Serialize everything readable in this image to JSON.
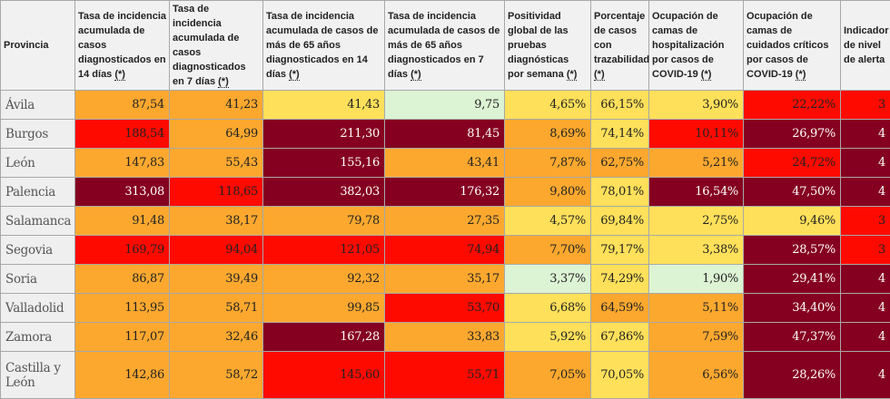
{
  "colors": {
    "o": "#fca82f",
    "y": "#ffe05a",
    "g": "#dcf3d4",
    "r": "#ff0a00",
    "d": "#850020"
  },
  "headers": [
    {
      "text": "Provincia",
      "note": ""
    },
    {
      "text": "Tasa de incidencia acumulada de casos diagnosticados en 14 días ",
      "note": "(*)"
    },
    {
      "text": "Tasa de incidencia acumulada de casos diagnosticados en 7 días ",
      "note": "(*)"
    },
    {
      "text": "Tasa de incidencia acumulada de casos de más de 65 años diagnosticados en 14 días ",
      "note": "(*)"
    },
    {
      "text": "Tasa de incidencia acumulada de casos de más de 65 años diagnosticados en 7 días ",
      "note": "(*)"
    },
    {
      "text": "Positividad global de las pruebas diagnósticas por semana ",
      "note": "(*)"
    },
    {
      "text": "Porcentaje de casos con trazabilidad ",
      "note": "(*)"
    },
    {
      "text": "Ocupación de camas de hospitalización por casos de COVID-19 ",
      "note": "(*)"
    },
    {
      "text": "Ocupación de camas de cuidados críticos por casos de COVID-19 ",
      "note": "(*)"
    },
    {
      "text": "Indicador de nivel de alerta",
      "note": ""
    }
  ],
  "rows": [
    {
      "province": "Ávila",
      "cells": [
        [
          "87,54",
          "o"
        ],
        [
          "41,23",
          "o"
        ],
        [
          "41,43",
          "y"
        ],
        [
          "9,75",
          "g"
        ],
        [
          "4,65%",
          "y"
        ],
        [
          "66,15%",
          "y"
        ],
        [
          "3,90%",
          "y"
        ],
        [
          "22,22%",
          "r"
        ],
        [
          "3",
          "r"
        ]
      ]
    },
    {
      "province": "Burgos",
      "cells": [
        [
          "188,54",
          "r"
        ],
        [
          "64,99",
          "o"
        ],
        [
          "211,30",
          "d"
        ],
        [
          "81,45",
          "d"
        ],
        [
          "8,69%",
          "o"
        ],
        [
          "74,14%",
          "y"
        ],
        [
          "10,11%",
          "r"
        ],
        [
          "26,97%",
          "d"
        ],
        [
          "4",
          "d"
        ]
      ]
    },
    {
      "province": "León",
      "cells": [
        [
          "147,83",
          "o"
        ],
        [
          "55,43",
          "o"
        ],
        [
          "155,16",
          "d"
        ],
        [
          "43,41",
          "o"
        ],
        [
          "7,87%",
          "o"
        ],
        [
          "62,75%",
          "o"
        ],
        [
          "5,21%",
          "o"
        ],
        [
          "24,72%",
          "r"
        ],
        [
          "4",
          "d"
        ]
      ]
    },
    {
      "province": "Palencia",
      "cells": [
        [
          "313,08",
          "d"
        ],
        [
          "118,65",
          "r"
        ],
        [
          "382,03",
          "d"
        ],
        [
          "176,32",
          "d"
        ],
        [
          "9,80%",
          "o"
        ],
        [
          "78,01%",
          "y"
        ],
        [
          "16,54%",
          "d"
        ],
        [
          "47,50%",
          "d"
        ],
        [
          "4",
          "d"
        ]
      ]
    },
    {
      "province": "Salamanca",
      "cells": [
        [
          "91,48",
          "o"
        ],
        [
          "38,17",
          "o"
        ],
        [
          "79,78",
          "o"
        ],
        [
          "27,35",
          "o"
        ],
        [
          "4,57%",
          "y"
        ],
        [
          "69,84%",
          "y"
        ],
        [
          "2,75%",
          "y"
        ],
        [
          "9,46%",
          "y"
        ],
        [
          "3",
          "r"
        ]
      ]
    },
    {
      "province": "Segovia",
      "cells": [
        [
          "169,79",
          "r"
        ],
        [
          "94,04",
          "r"
        ],
        [
          "121,05",
          "r"
        ],
        [
          "74,94",
          "r"
        ],
        [
          "7,70%",
          "o"
        ],
        [
          "79,17%",
          "y"
        ],
        [
          "3,38%",
          "y"
        ],
        [
          "28,57%",
          "d"
        ],
        [
          "3",
          "r"
        ]
      ]
    },
    {
      "province": "Soria",
      "cells": [
        [
          "86,87",
          "o"
        ],
        [
          "39,49",
          "o"
        ],
        [
          "92,32",
          "o"
        ],
        [
          "35,17",
          "o"
        ],
        [
          "3,37%",
          "g"
        ],
        [
          "74,29%",
          "y"
        ],
        [
          "1,90%",
          "g"
        ],
        [
          "29,41%",
          "d"
        ],
        [
          "4",
          "d"
        ]
      ]
    },
    {
      "province": "Valladolid",
      "cells": [
        [
          "113,95",
          "o"
        ],
        [
          "58,71",
          "o"
        ],
        [
          "99,85",
          "o"
        ],
        [
          "53,70",
          "r"
        ],
        [
          "6,68%",
          "y"
        ],
        [
          "64,59%",
          "o"
        ],
        [
          "5,11%",
          "o"
        ],
        [
          "34,40%",
          "d"
        ],
        [
          "4",
          "d"
        ]
      ]
    },
    {
      "province": "Zamora",
      "cells": [
        [
          "117,07",
          "o"
        ],
        [
          "32,46",
          "o"
        ],
        [
          "167,28",
          "d"
        ],
        [
          "33,83",
          "o"
        ],
        [
          "5,92%",
          "y"
        ],
        [
          "67,86%",
          "y"
        ],
        [
          "7,59%",
          "o"
        ],
        [
          "47,37%",
          "d"
        ],
        [
          "4",
          "d"
        ]
      ]
    },
    {
      "province": "Castilla y León",
      "cells": [
        [
          "142,86",
          "o"
        ],
        [
          "58,72",
          "o"
        ],
        [
          "145,60",
          "r"
        ],
        [
          "55,71",
          "r"
        ],
        [
          "7,05%",
          "o"
        ],
        [
          "70,05%",
          "y"
        ],
        [
          "6,56%",
          "o"
        ],
        [
          "28,26%",
          "d"
        ],
        [
          "4",
          "d"
        ]
      ]
    }
  ]
}
